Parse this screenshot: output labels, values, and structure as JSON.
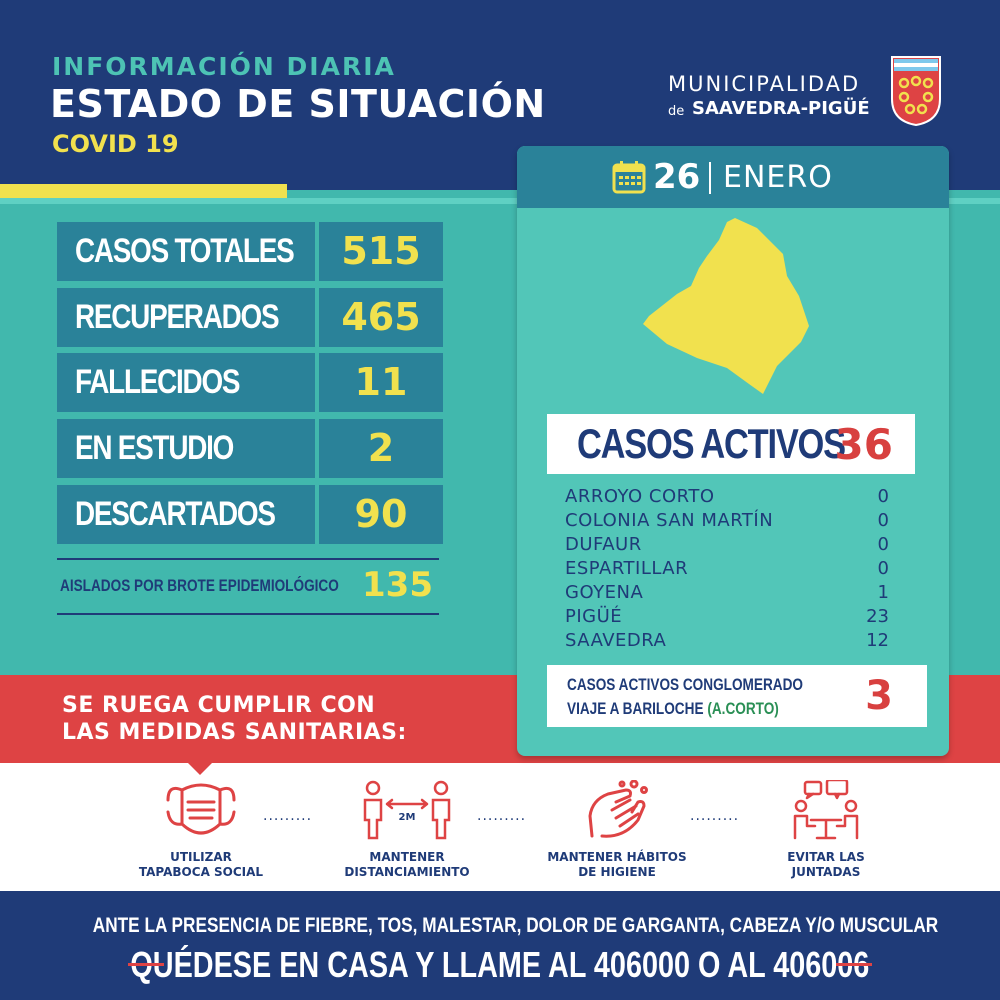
{
  "header": {
    "subtitle": "INFORMACIÓN DIARIA",
    "title": "ESTADO DE SITUACIÓN",
    "tag": "COVID 19",
    "muni_line1": "MUNICIPALIDAD",
    "muni_de": "de",
    "muni_line2": "SAAVEDRA-PIGÜÉ"
  },
  "colors": {
    "navy": "#1f3b78",
    "teal": "#41b8ad",
    "teal_dark": "#2a8299",
    "yellow": "#f1e14e",
    "red": "#de4344"
  },
  "stats": [
    {
      "label": "CASOS TOTALES",
      "value": "515"
    },
    {
      "label": "RECUPERADOS",
      "value": "465"
    },
    {
      "label": "FALLECIDOS",
      "value": "11"
    },
    {
      "label": "EN ESTUDIO",
      "value": "2"
    },
    {
      "label": "DESCARTADOS",
      "value": "90"
    }
  ],
  "isolated": {
    "label": "AISLADOS POR BROTE EPIDEMIOLÓGICO",
    "value": "135"
  },
  "card": {
    "calendar_icon": "calendar-icon",
    "day": "26",
    "month": "ENERO",
    "active_label": "CASOS ACTIVOS",
    "active_value": "36",
    "locations": [
      {
        "name": "ARROYO CORTO",
        "value": "0"
      },
      {
        "name": "COLONIA SAN MARTÍN",
        "value": "0"
      },
      {
        "name": "DUFAUR",
        "value": "0"
      },
      {
        "name": "ESPARTILLAR",
        "value": "0"
      },
      {
        "name": "GOYENA",
        "value": "1"
      },
      {
        "name": "PIGÜÉ",
        "value": "23"
      },
      {
        "name": "SAAVEDRA",
        "value": "12"
      }
    ],
    "cluster_line1": "CASOS ACTIVOS CONGLOMERADO",
    "cluster_line2": "VIAJE A BARILOCHE",
    "cluster_paren": "(A.CORTO)",
    "cluster_value": "3"
  },
  "notice": {
    "line1": "SE RUEGA CUMPLIR CON",
    "line2": "LAS MEDIDAS SANITARIAS:"
  },
  "measures": [
    {
      "icon": "face-mask-icon",
      "line1": "UTILIZAR",
      "line2": "TAPABOCA SOCIAL"
    },
    {
      "icon": "distance-icon",
      "badge": "2M",
      "line1": "MANTENER",
      "line2": "DISTANCIAMIENTO"
    },
    {
      "icon": "hand-washing-icon",
      "line1": "MANTENER HÁBITOS",
      "line2": "DE HIGIENE"
    },
    {
      "icon": "no-gatherings-icon",
      "line1": "EVITAR LAS",
      "line2": "JUNTADAS"
    }
  ],
  "footer": {
    "line1": "ANTE LA PRESENCIA DE FIEBRE, TOS, MALESTAR, DOLOR DE GARGANTA, CABEZA Y/O MUSCULAR",
    "line2": "QUÉDESE EN CASA Y LLAME AL 406000 O AL 406006"
  }
}
